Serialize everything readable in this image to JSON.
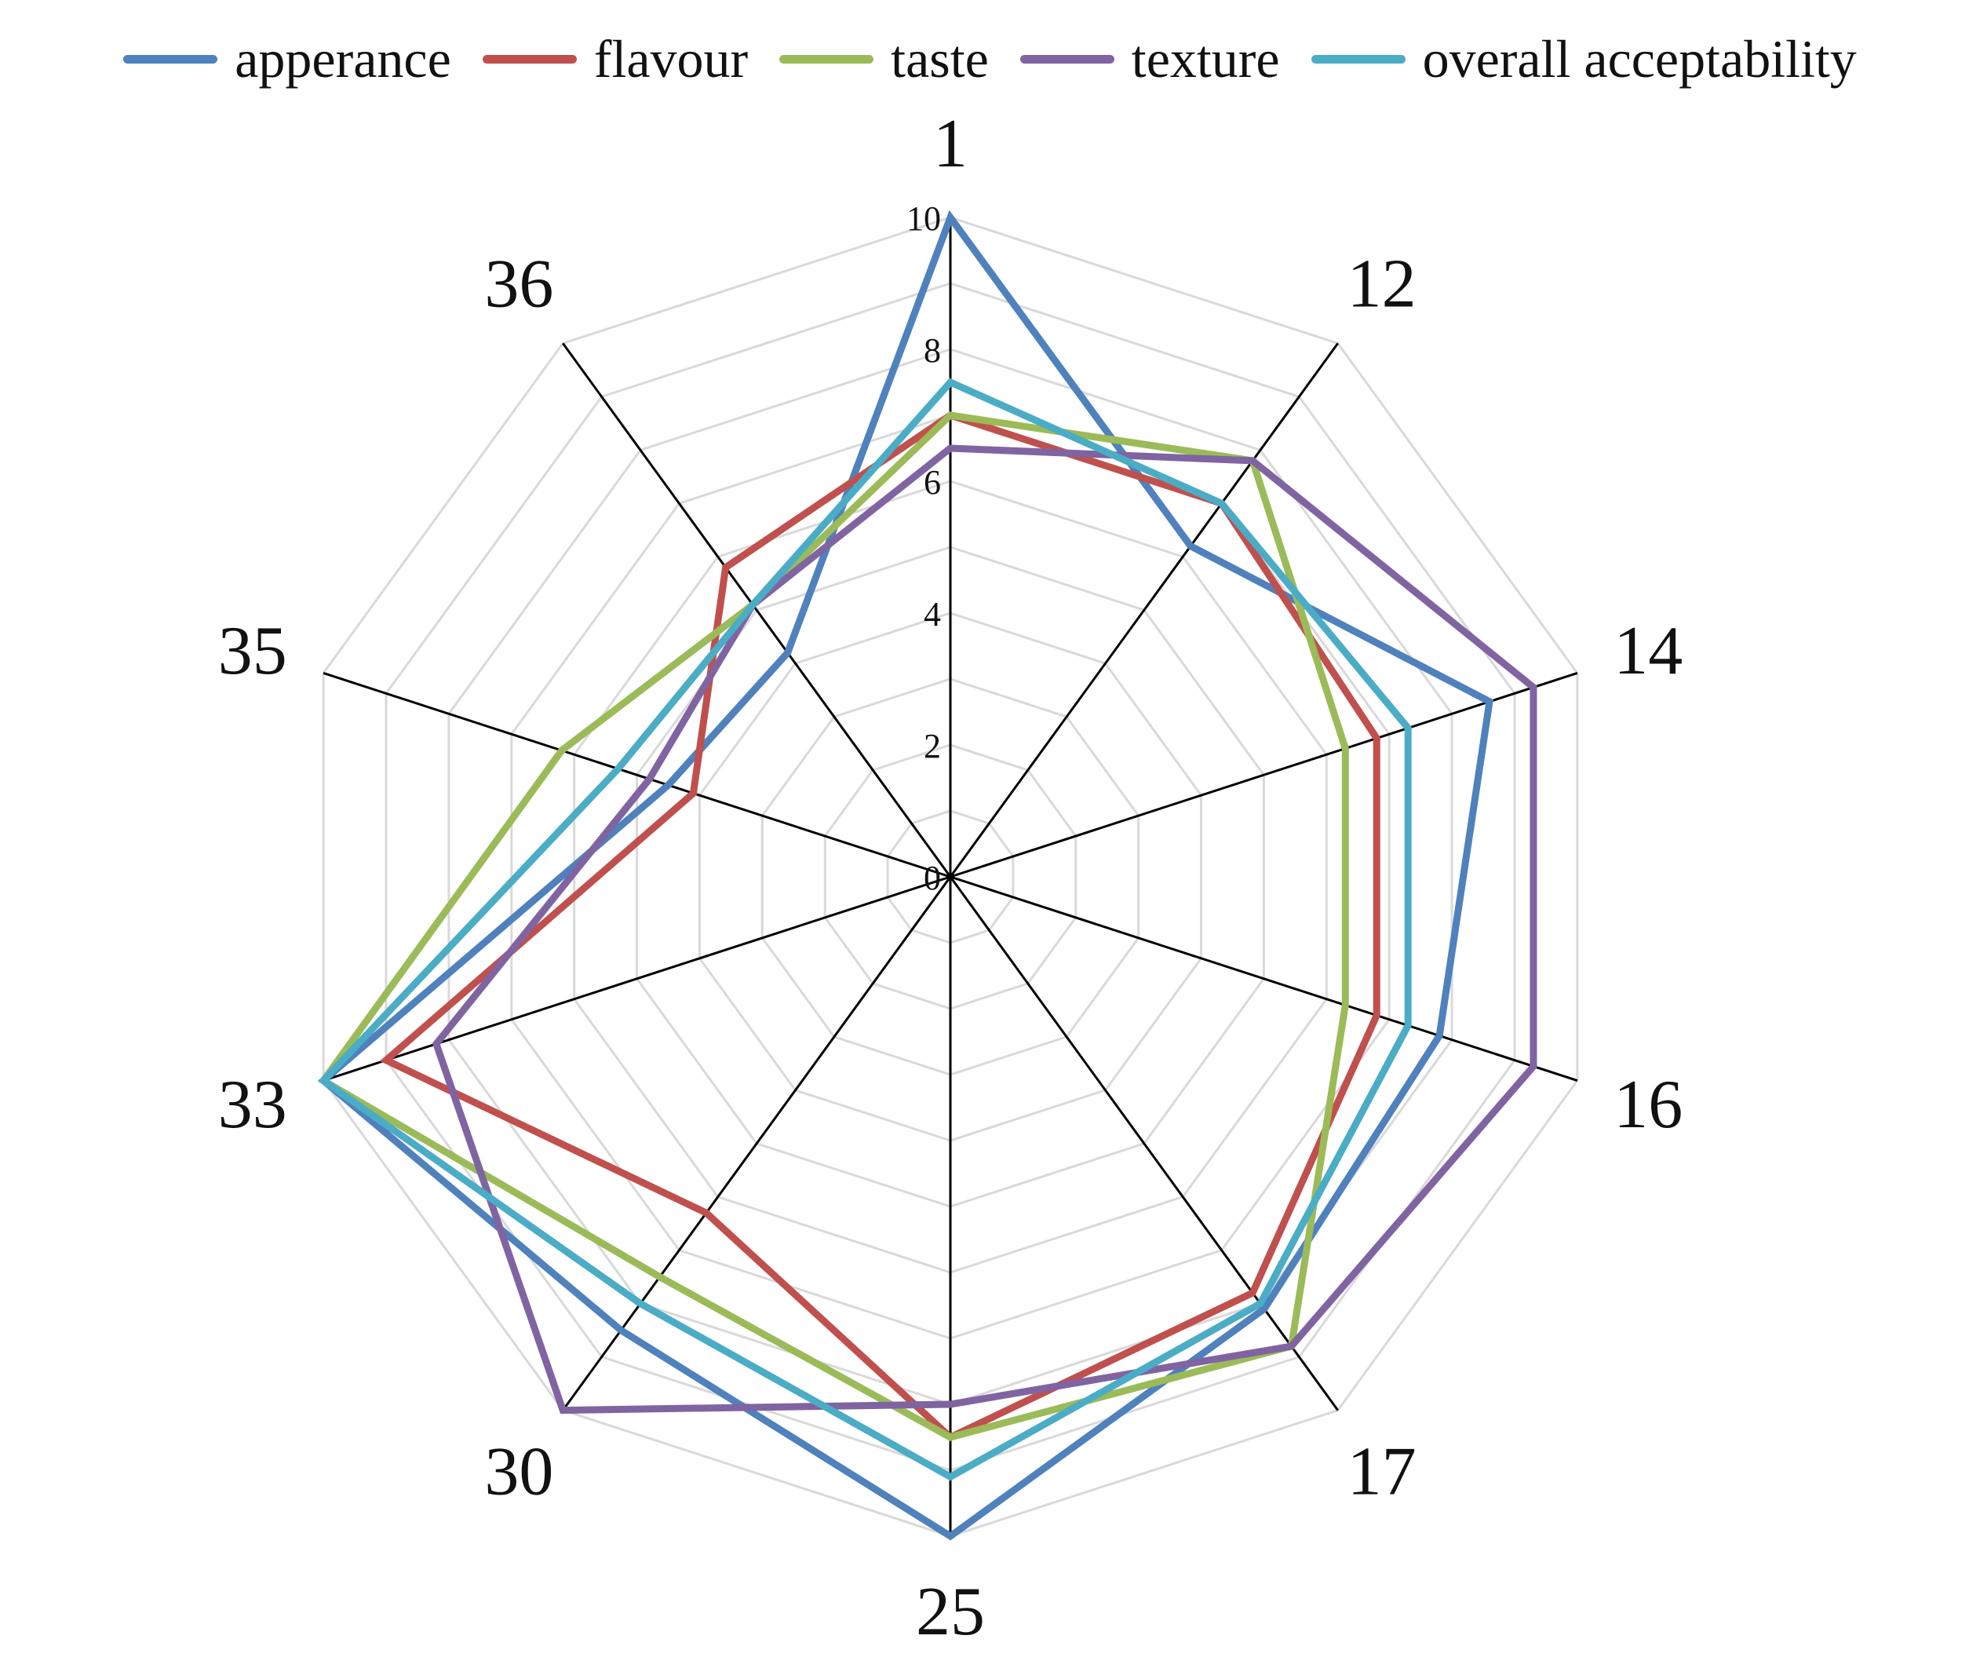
{
  "chart_data": {
    "type": "radar",
    "categories": [
      "1",
      "12",
      "14",
      "16",
      "17",
      "25",
      "30",
      "33",
      "35",
      "36"
    ],
    "rlim": [
      0,
      10
    ],
    "ticks": [
      "0",
      "2",
      "4",
      "6",
      "8",
      "10"
    ],
    "grid": true,
    "legend_position": "top",
    "series": [
      {
        "name": "apperance",
        "color": "#4f81bd",
        "values": [
          10,
          6.2,
          8.6,
          7.8,
          8.1,
          10,
          8.5,
          10,
          4.5,
          4.2
        ]
      },
      {
        "name": "flavour",
        "color": "#c0504d",
        "values": [
          7.0,
          7.0,
          6.8,
          6.8,
          7.8,
          8.5,
          6.3,
          9.0,
          4.1,
          5.8
        ]
      },
      {
        "name": "taste",
        "color": "#9bbb59",
        "values": [
          7.0,
          7.8,
          6.3,
          6.3,
          8.8,
          8.5,
          7.5,
          10,
          6.2,
          5.1
        ]
      },
      {
        "name": "texture",
        "color": "#8064a2",
        "values": [
          6.5,
          7.8,
          9.3,
          9.3,
          8.8,
          8.0,
          10,
          8.2,
          4.8,
          5.1
        ]
      },
      {
        "name": "overall acceptability",
        "color": "#4bacc6",
        "values": [
          7.5,
          7.0,
          7.3,
          7.3,
          8.0,
          9.1,
          8.0,
          10,
          5.3,
          5.1
        ]
      }
    ]
  }
}
